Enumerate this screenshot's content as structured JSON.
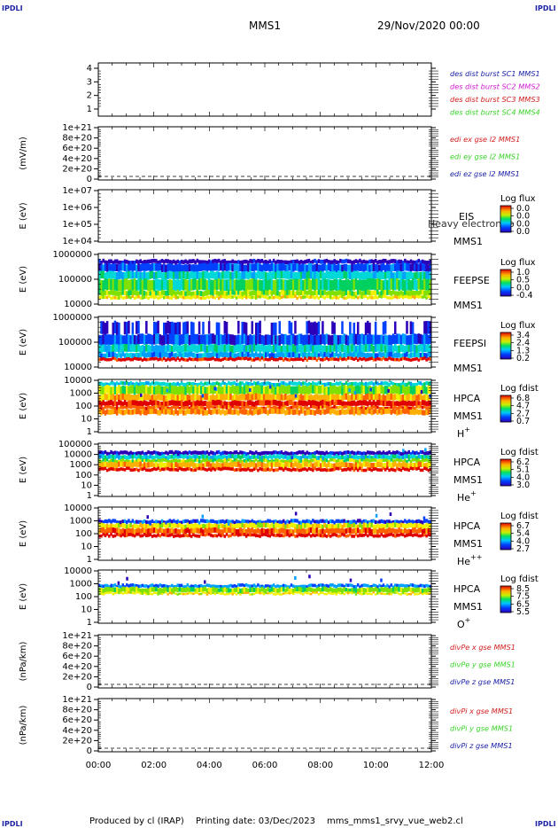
{
  "corners": {
    "tl": "IPDLI",
    "tr": "IPDLI",
    "bl": "IPDLI",
    "br": "IPDLI"
  },
  "header": {
    "spacecraft": "MMS1",
    "datetime": "29/Nov/2020 00:00"
  },
  "footer": {
    "produced_by": "Produced by cl (IRAP)",
    "printing_date": "Printing date: 03/Dec/2023",
    "file": "mms_mms1_srvy_vue_web2.cl"
  },
  "colors": {
    "blue": "#1d23a6",
    "magenta": "#d21fd2",
    "red": "#d21f1f",
    "green": "#3ad22a",
    "dark_red": "#b40000"
  },
  "chart_data": [
    {
      "type": "line",
      "name": "burst",
      "yticks": [
        "4",
        "3",
        "2",
        "1"
      ],
      "legend": [
        {
          "label": "des dist burst SC1 MMS1",
          "color": "#1d23a6"
        },
        {
          "label": "des dist burst SC2 MMS2",
          "color": "#d21fd2"
        },
        {
          "label": "des dist burst SC3 MMS3",
          "color": "#d21f1f"
        },
        {
          "label": "des dist burst SC4 MMS4",
          "color": "#3ad22a"
        }
      ]
    },
    {
      "type": "line",
      "name": "edi",
      "ylabel": "(mV/m)",
      "yticks": [
        "1e+21",
        "8e+20",
        "6e+20",
        "4e+20",
        "2e+20",
        "0"
      ],
      "legend": [
        {
          "label": "edi ex gse l2 MMS1",
          "color": "#d21f1f"
        },
        {
          "label": "edi ey gse l2 MMS1",
          "color": "#3ad22a"
        },
        {
          "label": "edi ez gse l2 MMS1",
          "color": "#1d23a6"
        }
      ]
    },
    {
      "type": "heatmap",
      "name": "eis",
      "ylabel": "E (eV)",
      "yticks": [
        "1e+07",
        "1e+06",
        "1e+05",
        "1e+04"
      ],
      "inst": [
        "EIS",
        "MMS1"
      ],
      "note": "Heavy electron to",
      "colorbar": {
        "title": "Log flux",
        "ticks": [
          "0.0",
          "0.0",
          "0.0",
          "0.0"
        ]
      }
    },
    {
      "type": "heatmap",
      "name": "feepse",
      "ylabel": "E (eV)",
      "yticks": [
        "1000000",
        "100000",
        "10000"
      ],
      "inst": [
        "FEEPSE",
        "MMS1"
      ],
      "colorbar": {
        "title": "Log flux",
        "ticks": [
          "1.0",
          "0.5",
          "0.0",
          "-0.4"
        ]
      }
    },
    {
      "type": "heatmap",
      "name": "feepsi",
      "ylabel": "E (eV)",
      "yticks": [
        "1000000",
        "100000",
        "10000"
      ],
      "inst": [
        "FEEPSI",
        "MMS1"
      ],
      "colorbar": {
        "title": "Log flux",
        "ticks": [
          "3.4",
          "2.4",
          "1.3",
          "0.2"
        ]
      }
    },
    {
      "type": "heatmap",
      "name": "hpca-h",
      "ylabel": "E (eV)",
      "yticks": [
        "10000",
        "1000",
        "100",
        "10",
        "1"
      ],
      "inst": [
        "HPCA",
        "MMS1"
      ],
      "species": {
        "base": "H",
        "sup": "+"
      },
      "colorbar": {
        "title": "Log fdist",
        "ticks": [
          "6.8",
          "4.7",
          "2.7",
          "0.7"
        ]
      }
    },
    {
      "type": "heatmap",
      "name": "hpca-he",
      "ylabel": "E (eV)",
      "yticks": [
        "100000",
        "10000",
        "1000",
        "100",
        "10",
        "1"
      ],
      "inst": [
        "HPCA",
        "MMS1"
      ],
      "species": {
        "base": "He",
        "sup": "+"
      },
      "colorbar": {
        "title": "Log fdist",
        "ticks": [
          "6.2",
          "5.1",
          "4.0",
          "3.0"
        ]
      }
    },
    {
      "type": "heatmap",
      "name": "hpca-he2",
      "ylabel": "E (eV)",
      "yticks": [
        "10000",
        "1000",
        "100",
        "10",
        "1"
      ],
      "inst": [
        "HPCA",
        "MMS1"
      ],
      "species": {
        "base": "He",
        "sup": "++"
      },
      "colorbar": {
        "title": "Log fdist",
        "ticks": [
          "6.7",
          "5.4",
          "4.0",
          "2.7"
        ]
      }
    },
    {
      "type": "heatmap",
      "name": "hpca-o",
      "ylabel": "E (eV)",
      "yticks": [
        "10000",
        "1000",
        "100",
        "10",
        "1"
      ],
      "inst": [
        "HPCA",
        "MMS1"
      ],
      "species": {
        "base": "O",
        "sup": "+"
      },
      "colorbar": {
        "title": "Log fdist",
        "ticks": [
          "8.5",
          "7.5",
          "6.5",
          "5.5"
        ]
      }
    },
    {
      "type": "line",
      "name": "divpe",
      "ylabel": "(nPa/km)",
      "yticks": [
        "1e+21",
        "8e+20",
        "6e+20",
        "4e+20",
        "2e+20",
        "0"
      ],
      "legend": [
        {
          "label": "divPe x gse MMS1",
          "color": "#d21f1f"
        },
        {
          "label": "divPe y gse MMS1",
          "color": "#3ad22a"
        },
        {
          "label": "divPe z gse MMS1",
          "color": "#1d23a6"
        }
      ]
    },
    {
      "type": "line",
      "name": "divpi",
      "ylabel": "(nPa/km)",
      "yticks": [
        "1e+21",
        "8e+20",
        "6e+20",
        "4e+20",
        "2e+20",
        "0"
      ],
      "legend": [
        {
          "label": "divPi x gse MMS1",
          "color": "#d21f1f"
        },
        {
          "label": "divPi y gse MMS1",
          "color": "#3ad22a"
        },
        {
          "label": "divPi z gse MMS1",
          "color": "#1d23a6"
        }
      ]
    }
  ],
  "xaxis": {
    "ticks": [
      "00:00",
      "02:00",
      "04:00",
      "06:00",
      "08:00",
      "10:00",
      "12:00"
    ]
  }
}
